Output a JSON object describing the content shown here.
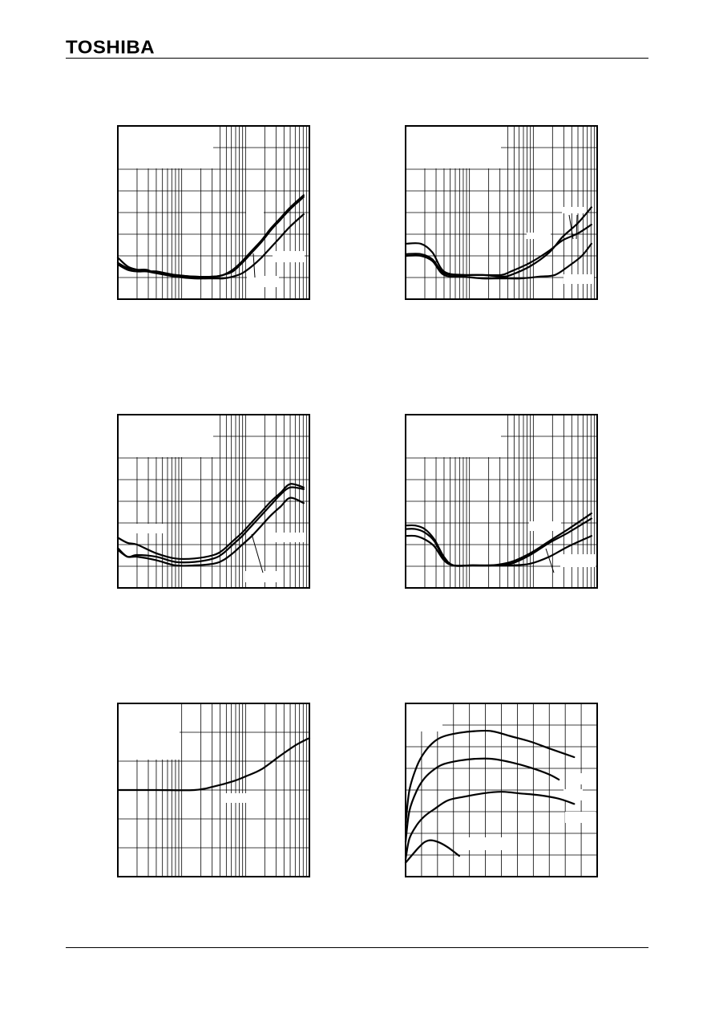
{
  "header": {
    "brand": "TOSHIBA"
  },
  "chart_data": [
    {
      "type": "line",
      "xscale": "log",
      "xdecades": 3,
      "yscale": "linear",
      "ydivs": 8,
      "xlim": [
        0,
        1
      ],
      "ylim": [
        0,
        1
      ],
      "grid": true,
      "series": [
        {
          "x": [
            0,
            0.05,
            0.1,
            0.15,
            0.2,
            0.3,
            0.4,
            0.5,
            0.55,
            0.6,
            0.65,
            0.7,
            0.75,
            0.8,
            0.85,
            0.9,
            0.97
          ],
          "y": [
            0.24,
            0.19,
            0.17,
            0.16,
            0.16,
            0.14,
            0.13,
            0.13,
            0.14,
            0.17,
            0.22,
            0.28,
            0.34,
            0.41,
            0.47,
            0.53,
            0.6
          ]
        },
        {
          "x": [
            0,
            0.05,
            0.1,
            0.15,
            0.2,
            0.3,
            0.4,
            0.5,
            0.55,
            0.6,
            0.65,
            0.7,
            0.75,
            0.8,
            0.85,
            0.9,
            0.97
          ],
          "y": [
            0.21,
            0.18,
            0.17,
            0.17,
            0.15,
            0.14,
            0.13,
            0.13,
            0.14,
            0.16,
            0.21,
            0.27,
            0.33,
            0.4,
            0.46,
            0.52,
            0.59
          ]
        },
        {
          "x": [
            0,
            0.05,
            0.1,
            0.15,
            0.2,
            0.3,
            0.4,
            0.5,
            0.55,
            0.6,
            0.65,
            0.7,
            0.75,
            0.8,
            0.85,
            0.9,
            0.97
          ],
          "y": [
            0.2,
            0.17,
            0.16,
            0.16,
            0.15,
            0.13,
            0.12,
            0.12,
            0.12,
            0.13,
            0.15,
            0.19,
            0.24,
            0.3,
            0.36,
            0.42,
            0.49
          ]
        }
      ]
    },
    {
      "type": "line",
      "xscale": "log",
      "xdecades": 3,
      "yscale": "linear",
      "ydivs": 8,
      "xlim": [
        0,
        1
      ],
      "ylim": [
        0,
        1
      ],
      "grid": true,
      "series": [
        {
          "x": [
            0,
            0.08,
            0.14,
            0.2,
            0.3,
            0.4,
            0.5,
            0.55,
            0.65,
            0.75,
            0.82,
            0.9,
            0.97
          ],
          "y": [
            0.32,
            0.32,
            0.27,
            0.16,
            0.14,
            0.14,
            0.14,
            0.16,
            0.21,
            0.28,
            0.34,
            0.38,
            0.43
          ]
        },
        {
          "x": [
            0,
            0.08,
            0.14,
            0.2,
            0.3,
            0.4,
            0.5,
            0.55,
            0.65,
            0.75,
            0.82,
            0.9,
            0.97
          ],
          "y": [
            0.26,
            0.26,
            0.23,
            0.15,
            0.14,
            0.14,
            0.13,
            0.14,
            0.19,
            0.27,
            0.36,
            0.44,
            0.53
          ]
        },
        {
          "x": [
            0,
            0.08,
            0.14,
            0.2,
            0.3,
            0.4,
            0.5,
            0.6,
            0.7,
            0.78,
            0.85,
            0.92,
            0.97
          ],
          "y": [
            0.25,
            0.25,
            0.22,
            0.14,
            0.13,
            0.12,
            0.12,
            0.12,
            0.13,
            0.14,
            0.19,
            0.25,
            0.32
          ]
        }
      ]
    },
    {
      "type": "line",
      "xscale": "log",
      "xdecades": 3,
      "yscale": "linear",
      "ydivs": 8,
      "xlim": [
        0,
        1
      ],
      "ylim": [
        0,
        1
      ],
      "grid": true,
      "series": [
        {
          "x": [
            0,
            0.05,
            0.1,
            0.2,
            0.3,
            0.4,
            0.5,
            0.55,
            0.6,
            0.65,
            0.7,
            0.75,
            0.8,
            0.85,
            0.9,
            0.97
          ],
          "y": [
            0.29,
            0.26,
            0.25,
            0.2,
            0.17,
            0.17,
            0.19,
            0.22,
            0.27,
            0.32,
            0.38,
            0.44,
            0.5,
            0.55,
            0.6,
            0.58
          ]
        },
        {
          "x": [
            0,
            0.05,
            0.1,
            0.2,
            0.3,
            0.4,
            0.5,
            0.55,
            0.6,
            0.65,
            0.7,
            0.75,
            0.8,
            0.85,
            0.9,
            0.97
          ],
          "y": [
            0.23,
            0.18,
            0.19,
            0.18,
            0.15,
            0.15,
            0.17,
            0.2,
            0.25,
            0.3,
            0.36,
            0.42,
            0.48,
            0.54,
            0.58,
            0.57
          ]
        },
        {
          "x": [
            0,
            0.05,
            0.1,
            0.2,
            0.3,
            0.4,
            0.5,
            0.55,
            0.6,
            0.65,
            0.7,
            0.75,
            0.8,
            0.85,
            0.9,
            0.97
          ],
          "y": [
            0.22,
            0.18,
            0.18,
            0.16,
            0.13,
            0.13,
            0.14,
            0.16,
            0.2,
            0.25,
            0.3,
            0.36,
            0.42,
            0.47,
            0.52,
            0.49
          ]
        }
      ]
    },
    {
      "type": "line",
      "xscale": "log",
      "xdecades": 3,
      "yscale": "linear",
      "ydivs": 8,
      "xlim": [
        0,
        1
      ],
      "ylim": [
        0,
        1
      ],
      "grid": true,
      "series": [
        {
          "x": [
            0,
            0.05,
            0.1,
            0.15,
            0.2,
            0.25,
            0.35,
            0.45,
            0.55,
            0.65,
            0.75,
            0.85,
            0.97
          ],
          "y": [
            0.36,
            0.36,
            0.34,
            0.28,
            0.18,
            0.13,
            0.13,
            0.13,
            0.15,
            0.2,
            0.27,
            0.34,
            0.43
          ]
        },
        {
          "x": [
            0,
            0.05,
            0.1,
            0.15,
            0.2,
            0.25,
            0.35,
            0.45,
            0.55,
            0.65,
            0.75,
            0.85,
            0.97
          ],
          "y": [
            0.34,
            0.34,
            0.32,
            0.27,
            0.17,
            0.13,
            0.13,
            0.13,
            0.14,
            0.19,
            0.26,
            0.32,
            0.4
          ]
        },
        {
          "x": [
            0,
            0.05,
            0.1,
            0.15,
            0.2,
            0.25,
            0.35,
            0.45,
            0.55,
            0.65,
            0.75,
            0.85,
            0.97
          ],
          "y": [
            0.3,
            0.3,
            0.28,
            0.24,
            0.16,
            0.13,
            0.13,
            0.13,
            0.13,
            0.14,
            0.18,
            0.24,
            0.3
          ]
        }
      ]
    },
    {
      "type": "line",
      "xscale": "log",
      "xdecades": 3,
      "yscale": "linear",
      "ydivs": 6,
      "xlim": [
        0,
        1
      ],
      "ylim": [
        0,
        1
      ],
      "grid": true,
      "series": [
        {
          "x": [
            0,
            0.2,
            0.4,
            0.5,
            0.6,
            0.67,
            0.75,
            0.85,
            0.93,
            1.0
          ],
          "y": [
            0.5,
            0.5,
            0.5,
            0.52,
            0.55,
            0.58,
            0.62,
            0.7,
            0.76,
            0.8
          ]
        }
      ]
    },
    {
      "type": "line",
      "xscale": "linear",
      "xdecades": 0,
      "yscale": "linear",
      "ydivs": 8,
      "xdivs": 12,
      "xlim": [
        0,
        1
      ],
      "ylim": [
        0,
        1
      ],
      "grid": true,
      "series": [
        {
          "x": [
            0,
            0.02,
            0.06,
            0.1,
            0.15,
            0.2,
            0.28,
            0.36,
            0.45,
            0.55,
            0.65,
            0.75,
            0.88
          ],
          "y": [
            0.3,
            0.5,
            0.64,
            0.72,
            0.78,
            0.81,
            0.83,
            0.84,
            0.84,
            0.81,
            0.78,
            0.74,
            0.69
          ]
        },
        {
          "x": [
            0,
            0.02,
            0.06,
            0.1,
            0.15,
            0.2,
            0.28,
            0.36,
            0.45,
            0.55,
            0.65,
            0.75,
            0.8
          ],
          "y": [
            0.2,
            0.38,
            0.5,
            0.57,
            0.62,
            0.65,
            0.67,
            0.68,
            0.68,
            0.66,
            0.63,
            0.59,
            0.56
          ]
        },
        {
          "x": [
            0,
            0.02,
            0.06,
            0.1,
            0.15,
            0.22,
            0.3,
            0.4,
            0.5,
            0.6,
            0.7,
            0.8,
            0.88
          ],
          "y": [
            0.1,
            0.22,
            0.3,
            0.35,
            0.39,
            0.44,
            0.46,
            0.48,
            0.49,
            0.48,
            0.47,
            0.45,
            0.42
          ]
        },
        {
          "x": [
            0,
            0.03,
            0.07,
            0.1,
            0.13,
            0.17,
            0.22,
            0.28
          ],
          "y": [
            0.08,
            0.12,
            0.17,
            0.2,
            0.21,
            0.2,
            0.17,
            0.12
          ]
        }
      ]
    }
  ]
}
